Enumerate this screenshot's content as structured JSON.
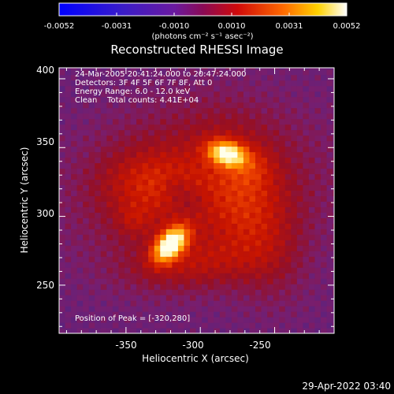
{
  "colorbar": {
    "tick_labels": [
      "-0.0052",
      "-0.0031",
      "-0.0010",
      "0.0010",
      "0.0031",
      "0.0052"
    ],
    "unit_label": "(photons cm⁻² s⁻¹ asec⁻²)",
    "range": [
      -0.0052,
      0.0052
    ]
  },
  "chart_data": {
    "type": "heatmap",
    "title": "Reconstructed RHESSI Image",
    "xlabel": "Heliocentric X (arcsec)",
    "ylabel": "Heliocentric Y (arcsec)",
    "xlim": [
      -395,
      -210
    ],
    "ylim": [
      215,
      408
    ],
    "xticks": [
      -350,
      -300,
      -250
    ],
    "yticks": [
      250,
      300,
      350,
      400
    ],
    "xtick_labels": [
      "-350",
      "-300",
      "-250"
    ],
    "ytick_labels": [
      "250",
      "300",
      "350",
      "400"
    ],
    "colormap": "hot (blue-purple-red-yellow-white)",
    "sources": [
      {
        "x": -320,
        "y": 280,
        "intensity": 1.0
      },
      {
        "x": -282,
        "y": 346,
        "intensity": 0.85
      }
    ],
    "peak": [
      -320,
      280
    ],
    "info_lines": [
      "24-Mar-2005 20:41:24.000 to 20:47:24.000",
      "Detectors: 3F 4F 5F 6F 7F 8F, Att 0",
      "Energy Range: 6.0 - 12.0 keV",
      "Clean    Total counts: 4.41E+04"
    ],
    "peak_label": "Position of Peak = [-320,280]"
  },
  "footer": {
    "timestamp": "29-Apr-2022 03:40"
  },
  "colors": {
    "background": "#000000",
    "axis": "#ffffff"
  }
}
